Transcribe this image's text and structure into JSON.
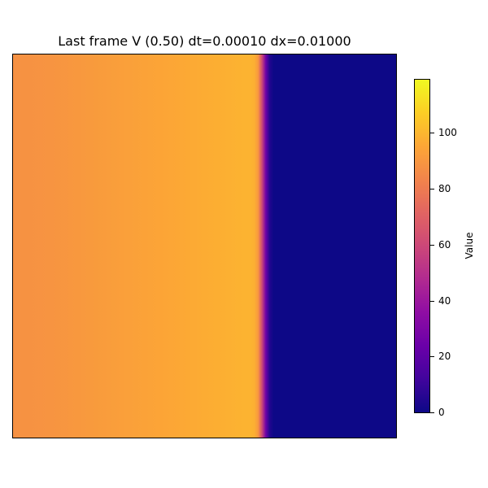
{
  "chart_data": {
    "type": "heatmap",
    "title": "Last frame V (0.50) dt=0.00010 dx=0.01000",
    "colormap": "plasma",
    "colorbar": {
      "label": "Value",
      "range": [
        0,
        119
      ],
      "ticks": [
        0,
        20,
        40,
        60,
        80,
        100
      ]
    },
    "x_range": [
      0,
      1
    ],
    "profile_x": [
      0.0,
      0.1,
      0.2,
      0.3,
      0.4,
      0.5,
      0.55,
      0.6,
      0.62,
      0.63,
      0.64,
      0.65,
      0.66,
      0.67,
      0.68,
      1.0
    ],
    "profile_values": [
      88,
      89,
      91,
      93,
      95,
      97,
      98,
      99,
      99,
      98,
      90,
      60,
      25,
      5,
      0,
      0
    ],
    "xticks_visible": false,
    "yticks_visible": false,
    "grid": false
  }
}
